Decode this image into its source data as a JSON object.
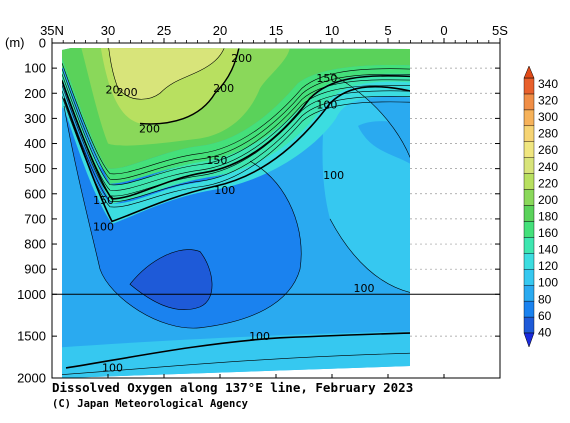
{
  "chart_data": {
    "type": "heatmap",
    "title": "Dissolved Oxygen along 137°E line, February 2023",
    "credit": "(C) Japan Meteorological Agency",
    "ylabel": "(m)",
    "x_ticks": [
      "35N",
      "30",
      "25",
      "20",
      "15",
      "10",
      "5",
      "0",
      "5S"
    ],
    "y_ticks": [
      "0",
      "100",
      "200",
      "300",
      "400",
      "500",
      "600",
      "700",
      "800",
      "900",
      "1000",
      "1500",
      "2000"
    ],
    "ylim": [
      0,
      2000
    ],
    "xlim": [
      "35N",
      "5S"
    ],
    "data_extent_latitude": [
      34,
      3
    ],
    "colorbar": {
      "min": 40,
      "max": 340,
      "labels": [
        "340",
        "320",
        "300",
        "280",
        "260",
        "240",
        "220",
        "200",
        "180",
        "160",
        "140",
        "120",
        "100",
        "80",
        "60",
        "40"
      ],
      "colors": [
        "#1e5ad8",
        "#1a82ef",
        "#2aaaf0",
        "#36c8f0",
        "#3cdde0",
        "#3ee6b0",
        "#44e07a",
        "#5ad25a",
        "#8ad85a",
        "#b8e060",
        "#d8e47a",
        "#f0e680",
        "#f6d474",
        "#f6b25a",
        "#f08e46",
        "#e8602c"
      ]
    },
    "contour_labels": [
      {
        "text": "200",
        "lat": 18.0,
        "depth": 60
      },
      {
        "text": "20",
        "lat": 29.5,
        "depth": 185
      },
      {
        "text": "200",
        "lat": 28.2,
        "depth": 195
      },
      {
        "text": "200",
        "lat": 19.6,
        "depth": 180
      },
      {
        "text": "200",
        "lat": 26.2,
        "depth": 340
      },
      {
        "text": "150",
        "lat": 10.4,
        "depth": 140
      },
      {
        "text": "100",
        "lat": 10.4,
        "depth": 245
      },
      {
        "text": "150",
        "lat": 20.2,
        "depth": 465
      },
      {
        "text": "100",
        "lat": 19.5,
        "depth": 585
      },
      {
        "text": "100",
        "lat": 9.8,
        "depth": 525
      },
      {
        "text": "150",
        "lat": 30.3,
        "depth": 625
      },
      {
        "text": "100",
        "lat": 30.3,
        "depth": 730
      },
      {
        "text": "100",
        "lat": 7.1,
        "depth": 975
      },
      {
        "text": "100",
        "lat": 16.4,
        "depth": 1500
      },
      {
        "text": "100",
        "lat": 29.5,
        "depth": 1875
      }
    ],
    "grid": true
  }
}
